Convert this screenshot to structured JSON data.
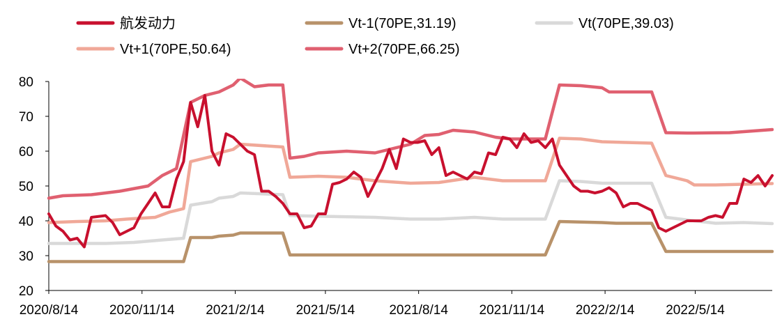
{
  "chart_data": {
    "type": "line",
    "title": "",
    "xlabel": "",
    "ylabel": "",
    "ylim": [
      20,
      80
    ],
    "yticks": [
      20,
      30,
      40,
      50,
      60,
      70,
      80
    ],
    "x_tick_labels": [
      "2020/8/14",
      "2020/11/14",
      "2021/2/14",
      "2021/5/14",
      "2021/8/14",
      "2021/11/14",
      "2022/2/14",
      "2022/5/14"
    ],
    "x_start": "2020/8/14",
    "x_end": "2022/7/29",
    "grid": false,
    "legend_position": "top",
    "series": [
      {
        "name": "航发动力",
        "color": "#C8102E",
        "x": [
          "2020/8/14",
          "2020/8/21",
          "2020/8/28",
          "2020/9/4",
          "2020/9/11",
          "2020/9/18",
          "2020/9/25",
          "2020/10/9",
          "2020/10/16",
          "2020/10/23",
          "2020/10/30",
          "2020/11/6",
          "2020/11/13",
          "2020/11/20",
          "2020/11/27",
          "2020/12/4",
          "2020/12/11",
          "2020/12/18",
          "2020/12/25",
          "2021/1/1",
          "2021/1/8",
          "2021/1/15",
          "2021/1/22",
          "2021/1/29",
          "2021/2/5",
          "2021/2/12",
          "2021/2/19",
          "2021/2/26",
          "2021/3/5",
          "2021/3/12",
          "2021/3/19",
          "2021/3/26",
          "2021/4/2",
          "2021/4/9",
          "2021/4/16",
          "2021/4/23",
          "2021/4/30",
          "2021/5/7",
          "2021/5/14",
          "2021/5/21",
          "2021/5/28",
          "2021/6/4",
          "2021/6/11",
          "2021/6/18",
          "2021/6/25",
          "2021/7/2",
          "2021/7/9",
          "2021/7/16",
          "2021/7/23",
          "2021/7/30",
          "2021/8/6",
          "2021/8/13",
          "2021/8/20",
          "2021/8/27",
          "2021/9/3",
          "2021/9/10",
          "2021/9/17",
          "2021/9/24",
          "2021/10/1",
          "2021/10/8",
          "2021/10/15",
          "2021/10/22",
          "2021/10/29",
          "2021/11/5",
          "2021/11/12",
          "2021/11/19",
          "2021/11/26",
          "2021/12/3",
          "2021/12/10",
          "2021/12/17",
          "2021/12/24",
          "2021/12/31",
          "2022/1/7",
          "2022/1/14",
          "2022/1/21",
          "2022/1/28",
          "2022/2/4",
          "2022/2/11",
          "2022/2/18",
          "2022/2/25",
          "2022/3/4",
          "2022/3/11",
          "2022/3/18",
          "2022/3/25",
          "2022/4/1",
          "2022/4/8",
          "2022/4/15",
          "2022/4/22",
          "2022/4/29",
          "2022/5/6",
          "2022/5/13",
          "2022/5/20",
          "2022/5/27",
          "2022/6/3",
          "2022/6/10",
          "2022/6/17",
          "2022/6/24",
          "2022/7/1",
          "2022/7/8",
          "2022/7/15",
          "2022/7/22",
          "2022/7/29"
        ],
        "values": [
          42,
          38.5,
          37,
          34.5,
          35,
          32.5,
          41,
          41.5,
          39.5,
          36,
          37,
          38,
          42,
          45,
          48,
          44,
          44,
          52,
          57,
          74,
          67,
          76,
          60,
          56,
          65,
          64,
          62,
          60,
          59,
          48.5,
          48.5,
          47,
          45,
          42,
          42,
          38,
          38.5,
          42,
          42,
          50.5,
          51,
          52,
          54,
          52.5,
          47,
          51,
          55,
          60.5,
          55,
          63.5,
          62.5,
          62.5,
          63,
          59,
          61,
          53,
          54,
          53,
          52,
          54,
          53.5,
          59.5,
          59,
          64,
          63.5,
          61,
          65,
          62.5,
          63,
          61,
          63.5,
          56,
          53,
          50,
          48.5,
          48.5,
          48,
          48.5,
          49.5,
          48,
          44,
          45,
          45,
          44,
          43,
          38,
          37,
          38,
          39,
          40,
          40,
          40,
          41,
          41.5,
          41,
          45,
          45,
          52,
          51,
          53,
          50,
          53
        ]
      },
      {
        "name": "Vt-1(70PE,31.19)",
        "color": "#B8926A",
        "x": [
          "2020/8/14",
          "2020/12/25",
          "2021/1/1",
          "2021/1/22",
          "2021/1/29",
          "2021/2/12",
          "2021/2/19",
          "2021/4/2",
          "2021/4/9",
          "2021/12/17",
          "2021/12/31",
          "2022/2/11",
          "2022/2/25",
          "2022/4/1",
          "2022/4/15",
          "2022/7/29"
        ],
        "values": [
          28.3,
          28.3,
          35.2,
          35.2,
          35.6,
          35.9,
          36.5,
          36.5,
          30.2,
          30.2,
          39.8,
          39.5,
          39.3,
          39.3,
          31.2,
          31.2
        ]
      },
      {
        "name": "Vt(70PE,39.03)",
        "color": "#D9D9D9",
        "x": [
          "2020/8/14",
          "2020/9/11",
          "2020/10/9",
          "2020/11/6",
          "2020/12/4",
          "2020/12/25",
          "2021/1/1",
          "2021/1/22",
          "2021/1/29",
          "2021/2/12",
          "2021/2/19",
          "2021/4/2",
          "2021/4/9",
          "2021/5/28",
          "2021/7/2",
          "2021/8/6",
          "2021/9/3",
          "2021/10/8",
          "2021/11/5",
          "2021/12/17",
          "2021/12/31",
          "2022/1/21",
          "2022/2/11",
          "2022/4/1",
          "2022/4/15",
          "2022/5/13",
          "2022/6/3",
          "2022/7/1",
          "2022/7/29"
        ],
        "values": [
          33.5,
          33.5,
          33.5,
          33.8,
          34.5,
          35,
          44.5,
          45.5,
          46.5,
          47,
          48,
          47.5,
          41.5,
          41.2,
          41,
          40.5,
          40.5,
          41,
          40.5,
          40.5,
          51.5,
          51.3,
          50.8,
          50.8,
          41,
          40,
          39.3,
          39.5,
          39.2
        ]
      },
      {
        "name": "Vt+1(70PE,50.64)",
        "color": "#F0A898",
        "x": [
          "2020/8/14",
          "2020/9/11",
          "2020/10/9",
          "2020/10/30",
          "2020/11/27",
          "2020/12/11",
          "2020/12/25",
          "2021/1/1",
          "2021/1/22",
          "2021/1/29",
          "2021/2/12",
          "2021/2/19",
          "2021/4/2",
          "2021/4/9",
          "2021/5/7",
          "2021/6/4",
          "2021/7/2",
          "2021/8/6",
          "2021/9/3",
          "2021/10/8",
          "2021/11/5",
          "2021/12/17",
          "2021/12/31",
          "2022/1/21",
          "2022/2/11",
          "2022/4/1",
          "2022/4/15",
          "2022/5/6",
          "2022/5/13",
          "2022/6/3",
          "2022/7/1",
          "2022/7/29"
        ],
        "values": [
          39.5,
          39.8,
          40,
          40.5,
          41,
          42.5,
          43.5,
          57,
          58.5,
          59.5,
          60.5,
          62,
          61.2,
          52.5,
          52.8,
          52.5,
          51.5,
          50.8,
          51,
          52.5,
          51.5,
          51.5,
          63.7,
          63.5,
          62.7,
          62.3,
          53,
          51.5,
          50.3,
          50.3,
          50.5,
          50.7
        ]
      },
      {
        "name": "Vt+2(70PE,66.25)",
        "color": "#E06070",
        "x": [
          "2020/8/14",
          "2020/8/28",
          "2020/9/25",
          "2020/10/23",
          "2020/11/20",
          "2020/12/4",
          "2020/12/18",
          "2021/1/1",
          "2021/1/15",
          "2021/1/29",
          "2021/2/12",
          "2021/2/19",
          "2021/3/5",
          "2021/3/19",
          "2021/4/2",
          "2021/4/9",
          "2021/4/23",
          "2021/5/7",
          "2021/6/4",
          "2021/7/2",
          "2021/8/6",
          "2021/8/20",
          "2021/9/3",
          "2021/9/17",
          "2021/10/8",
          "2021/10/29",
          "2021/11/12",
          "2021/12/17",
          "2021/12/31",
          "2022/1/21",
          "2022/2/11",
          "2022/2/18",
          "2022/3/11",
          "2022/4/1",
          "2022/4/15",
          "2022/5/6",
          "2022/5/13",
          "2022/6/17",
          "2022/7/29"
        ],
        "values": [
          46.5,
          47.2,
          47.5,
          48.5,
          50,
          53,
          55,
          74,
          76,
          77,
          79,
          81,
          78.5,
          79,
          79,
          58,
          58.5,
          59.5,
          60,
          59.5,
          62,
          64.5,
          64.8,
          66,
          65.5,
          64,
          63.5,
          63.5,
          79,
          78.8,
          78.2,
          77,
          77,
          77,
          65.3,
          65.2,
          65.2,
          65.3,
          66.2
        ]
      }
    ]
  }
}
